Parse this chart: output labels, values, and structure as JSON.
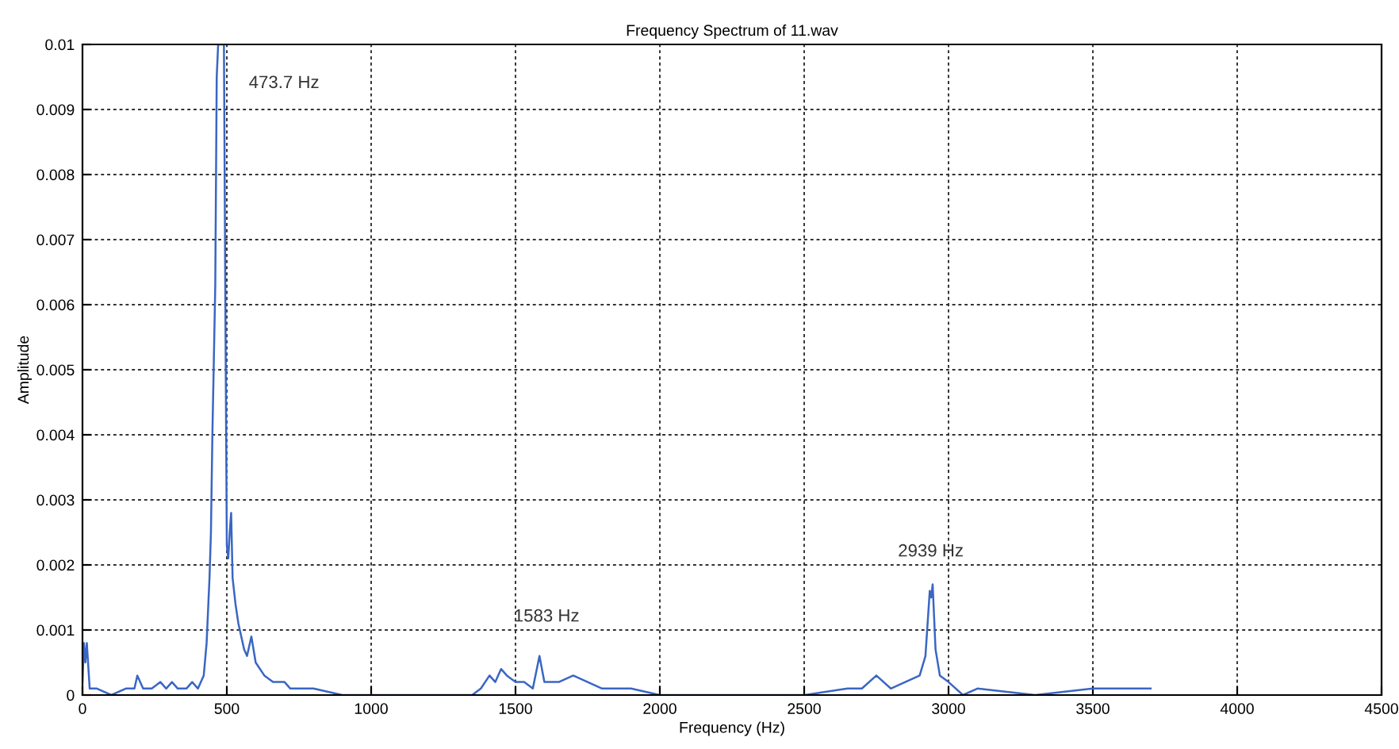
{
  "chart_data": {
    "type": "line",
    "title": "Frequency Spectrum of 11.wav",
    "xlabel": "Frequency (Hz)",
    "ylabel": "Amplitude",
    "xlim": [
      0,
      4500
    ],
    "xticks": [
      0,
      500,
      1000,
      1500,
      2000,
      2500,
      3000,
      3500,
      4000,
      4500
    ],
    "ylim": [
      0,
      0.01
    ],
    "yticks": [
      0,
      0.001,
      0.002,
      0.003,
      0.004,
      0.005,
      0.006,
      0.007,
      0.008,
      0.009,
      0.01
    ],
    "grid": true,
    "marker": "none",
    "line_style": "solid",
    "series": [
      {
        "color": "#3a66c4",
        "x": [
          0,
          5,
          10,
          15,
          25,
          50,
          100,
          150,
          180,
          190,
          210,
          240,
          270,
          290,
          310,
          330,
          360,
          380,
          400,
          420,
          430,
          440,
          445,
          450,
          460,
          465,
          470,
          480,
          490,
          495,
          500,
          505,
          510,
          515,
          520,
          530,
          540,
          550,
          560,
          570,
          585,
          600,
          630,
          660,
          700,
          720,
          800,
          900,
          1000,
          1200,
          1350,
          1380,
          1410,
          1430,
          1450,
          1470,
          1500,
          1530,
          1560,
          1583,
          1600,
          1650,
          1700,
          1750,
          1800,
          1900,
          2000,
          2200,
          2500,
          2650,
          2700,
          2750,
          2800,
          2850,
          2900,
          2920,
          2935,
          2940,
          2945,
          2955,
          2970,
          3000,
          3050,
          3100,
          3300,
          3500,
          3700
        ],
        "values": [
          0.0002,
          0.0008,
          0.0005,
          0.0008,
          0.0001,
          0.0001,
          0,
          0.0001,
          0.0001,
          0.0003,
          0.0001,
          0.0001,
          0.0002,
          0.0001,
          0.0002,
          0.0001,
          0.0001,
          0.0002,
          0.0001,
          0.0003,
          0.0008,
          0.0018,
          0.0025,
          0.004,
          0.0063,
          0.0095,
          0.01,
          0.01,
          0.01,
          0.006,
          0.0023,
          0.0021,
          0.0025,
          0.0028,
          0.0018,
          0.0014,
          0.0011,
          0.0009,
          0.0007,
          0.0006,
          0.0009,
          0.0005,
          0.0003,
          0.0002,
          0.0002,
          0.0001,
          0.0001,
          0,
          0,
          0,
          0,
          0.0001,
          0.0003,
          0.0002,
          0.0004,
          0.0003,
          0.0002,
          0.0002,
          0.0001,
          0.0006,
          0.0002,
          0.0002,
          0.0003,
          0.0002,
          0.0001,
          0.0001,
          0,
          0,
          0,
          0.0001,
          0.0001,
          0.0003,
          0.0001,
          0.0002,
          0.0003,
          0.0006,
          0.0016,
          0.0015,
          0.0017,
          0.0007,
          0.0003,
          0.0002,
          0,
          0.0001,
          0,
          0.0001,
          0.0001
        ]
      }
    ],
    "annotations": [
      "473.7 Hz",
      "1583 Hz",
      "2939 Hz"
    ]
  }
}
